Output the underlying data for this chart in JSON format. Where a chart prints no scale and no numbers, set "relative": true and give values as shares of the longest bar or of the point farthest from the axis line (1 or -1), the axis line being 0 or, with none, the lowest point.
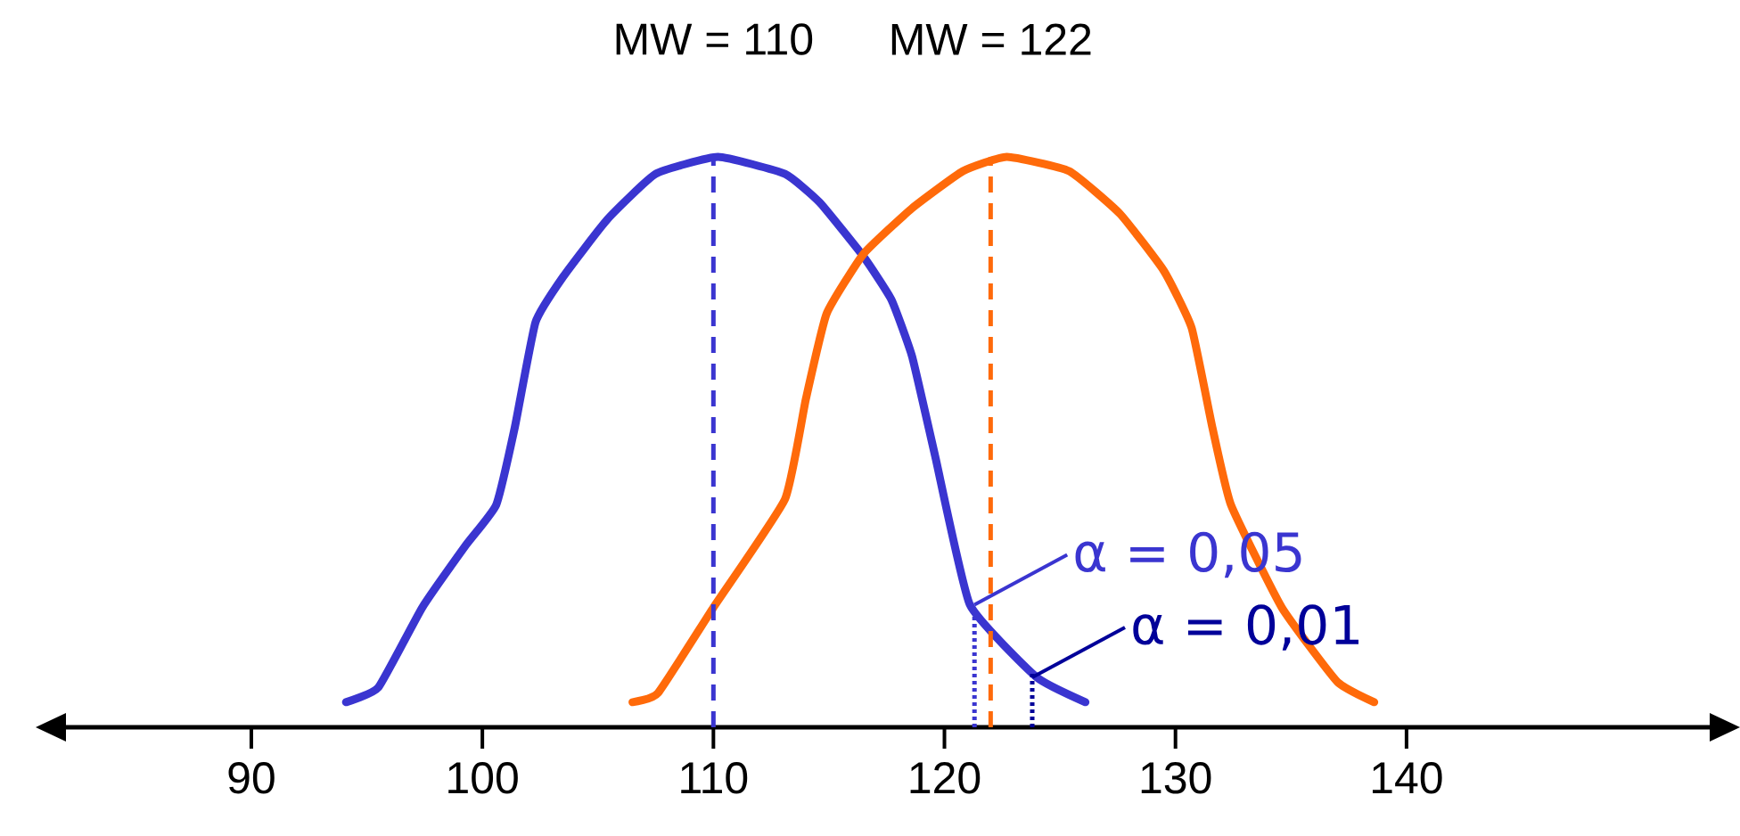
{
  "chart_data": {
    "type": "line",
    "relative": true,
    "tick_labels": "x",
    "line_style": "solid",
    "xlim": [
      81.9,
      153.2
    ],
    "xticks": [
      90,
      100,
      110,
      120,
      130,
      140
    ],
    "series": [
      {
        "color": "#3a35d0",
        "x": [
          94.1,
          95.5,
          97.4,
          99.3,
          100.6,
          101.4,
          102.3,
          103.5,
          105.4,
          107.5,
          110.2,
          113.1,
          114.6,
          116.5,
          117.7,
          118.6,
          119.6,
          121.1,
          124.0,
          126.1
        ],
        "values": [
          0.044,
          0.07,
          0.21,
          0.32,
          0.39,
          0.525,
          0.71,
          0.79,
          0.89,
          0.97,
          1.0,
          0.97,
          0.92,
          0.825,
          0.75,
          0.65,
          0.475,
          0.215,
          0.0875,
          0.044
        ]
      },
      {
        "color": "#ff6a0a",
        "x": [
          106.5,
          107.6,
          110.0,
          113.1,
          114.0,
          114.9,
          116.5,
          118.6,
          120.8,
          122.7,
          125.4,
          127.6,
          129.5,
          130.7,
          131.6,
          132.4,
          134.6,
          137.0,
          138.6
        ],
        "values": [
          0.044,
          0.06,
          0.21,
          0.4,
          0.575,
          0.725,
          0.83,
          0.91,
          0.975,
          1.0,
          0.975,
          0.9,
          0.8,
          0.7,
          0.525,
          0.39,
          0.21,
          0.08,
          0.044
        ]
      }
    ],
    "ref_lines": [
      {
        "axis": "x",
        "value": 110,
        "label": "MW = 110",
        "color": "#3a35d0",
        "line_style": "dashed"
      },
      {
        "axis": "x",
        "value": 122,
        "label": "MW = 122",
        "color": "#ff6a0a",
        "line_style": "dashed"
      },
      {
        "axis": "x",
        "value": 121.3,
        "color": "#3a35d0",
        "line_style": "dotted"
      },
      {
        "axis": "x",
        "value": 123.8,
        "color": "#000099",
        "line_style": "dotted"
      }
    ],
    "annotations": [
      {
        "text": "α = 0,05",
        "x": 121.3,
        "y": 0.215
      },
      {
        "text": "α = 0,01",
        "x": 123.8,
        "y": 0.0875
      }
    ]
  }
}
